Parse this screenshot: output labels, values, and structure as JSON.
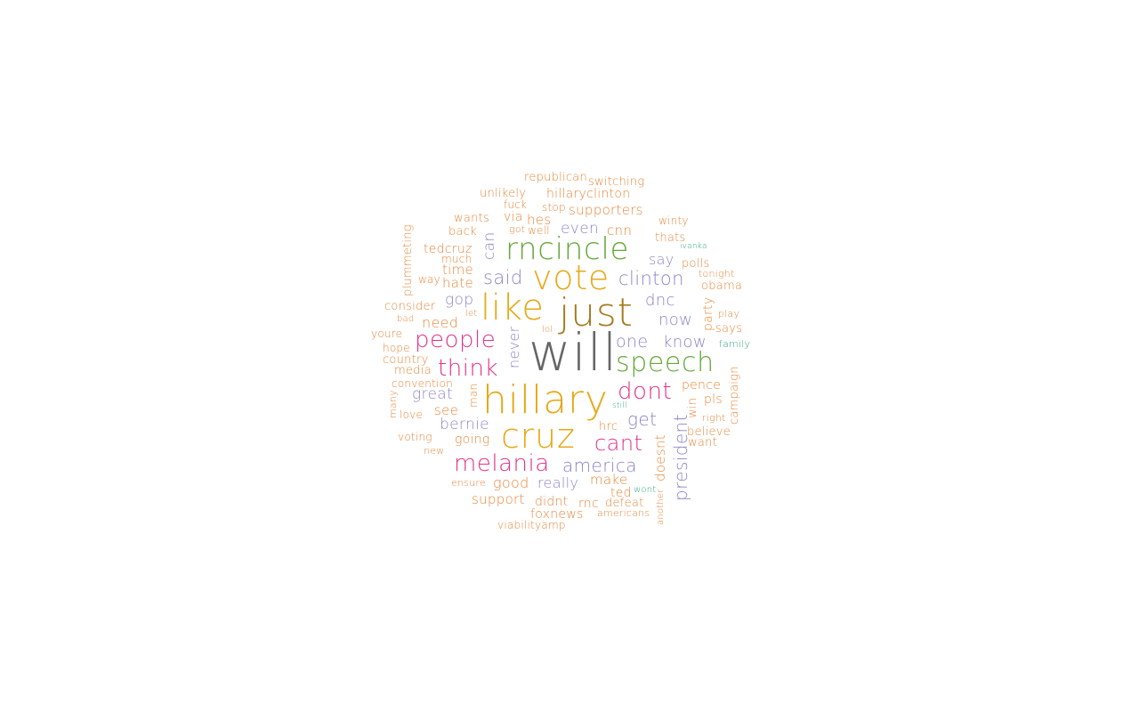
{
  "colors": {
    "background": "#ffffff",
    "orange": "#e8873a",
    "gold": "#e6a919",
    "brown": "#a47c23",
    "green": "#66a83a",
    "purple": "#8c86c8",
    "pink": "#e2338a",
    "gray": "#666666",
    "teal": "#2fa67f"
  },
  "words": [
    {
      "text": "will",
      "color": "gray"
    },
    {
      "text": "hillary",
      "color": "gold"
    },
    {
      "text": "just",
      "color": "brown"
    },
    {
      "text": "like",
      "color": "gold"
    },
    {
      "text": "vote",
      "color": "gold"
    },
    {
      "text": "cruz",
      "color": "gold"
    },
    {
      "text": "rncincle",
      "color": "green"
    },
    {
      "text": "speech",
      "color": "green"
    },
    {
      "text": "melania",
      "color": "pink"
    },
    {
      "text": "people",
      "color": "pink"
    },
    {
      "text": "dont",
      "color": "pink"
    },
    {
      "text": "think",
      "color": "pink"
    },
    {
      "text": "cant",
      "color": "pink"
    },
    {
      "text": "clinton",
      "color": "purple"
    },
    {
      "text": "america",
      "color": "purple"
    },
    {
      "text": "said",
      "color": "purple"
    },
    {
      "text": "get",
      "color": "purple"
    },
    {
      "text": "one",
      "color": "purple"
    },
    {
      "text": "know",
      "color": "purple"
    },
    {
      "text": "president",
      "color": "purple"
    },
    {
      "text": "bernie",
      "color": "purple"
    },
    {
      "text": "great",
      "color": "purple"
    },
    {
      "text": "now",
      "color": "purple"
    },
    {
      "text": "dnc",
      "color": "purple"
    },
    {
      "text": "gop",
      "color": "purple"
    },
    {
      "text": "even",
      "color": "purple"
    },
    {
      "text": "can",
      "color": "purple"
    },
    {
      "text": "never",
      "color": "purple"
    },
    {
      "text": "really",
      "color": "purple"
    },
    {
      "text": "say",
      "color": "purple"
    },
    {
      "text": "doesnt",
      "color": "orange"
    },
    {
      "text": "supporters",
      "color": "orange"
    },
    {
      "text": "hillaryclinton",
      "color": "orange"
    },
    {
      "text": "republican",
      "color": "orange"
    },
    {
      "text": "switching",
      "color": "orange"
    },
    {
      "text": "unlikely",
      "color": "orange"
    },
    {
      "text": "fuck",
      "color": "orange"
    },
    {
      "text": "stop",
      "color": "orange"
    },
    {
      "text": "wants",
      "color": "orange"
    },
    {
      "text": "via",
      "color": "orange"
    },
    {
      "text": "hes",
      "color": "orange"
    },
    {
      "text": "back",
      "color": "orange"
    },
    {
      "text": "got",
      "color": "orange"
    },
    {
      "text": "well",
      "color": "orange"
    },
    {
      "text": "cnn",
      "color": "orange"
    },
    {
      "text": "winty",
      "color": "orange"
    },
    {
      "text": "thats",
      "color": "orange"
    },
    {
      "text": "ivanka",
      "color": "teal"
    },
    {
      "text": "plummeting",
      "color": "orange"
    },
    {
      "text": "tedcruz",
      "color": "orange"
    },
    {
      "text": "much",
      "color": "orange"
    },
    {
      "text": "time",
      "color": "orange"
    },
    {
      "text": "way",
      "color": "orange"
    },
    {
      "text": "hate",
      "color": "orange"
    },
    {
      "text": "polls",
      "color": "orange"
    },
    {
      "text": "tonight",
      "color": "orange"
    },
    {
      "text": "obama",
      "color": "orange"
    },
    {
      "text": "consider",
      "color": "orange"
    },
    {
      "text": "let",
      "color": "orange"
    },
    {
      "text": "bad",
      "color": "orange"
    },
    {
      "text": "need",
      "color": "orange"
    },
    {
      "text": "party",
      "color": "orange"
    },
    {
      "text": "play",
      "color": "orange"
    },
    {
      "text": "says",
      "color": "orange"
    },
    {
      "text": "youre",
      "color": "orange"
    },
    {
      "text": "lol",
      "color": "orange"
    },
    {
      "text": "hope",
      "color": "orange"
    },
    {
      "text": "family",
      "color": "teal"
    },
    {
      "text": "country",
      "color": "orange"
    },
    {
      "text": "media",
      "color": "orange"
    },
    {
      "text": "campaign",
      "color": "orange"
    },
    {
      "text": "convention",
      "color": "orange"
    },
    {
      "text": "pence",
      "color": "orange"
    },
    {
      "text": "man",
      "color": "orange"
    },
    {
      "text": "many",
      "color": "orange"
    },
    {
      "text": "pls",
      "color": "orange"
    },
    {
      "text": "see",
      "color": "orange"
    },
    {
      "text": "still",
      "color": "teal"
    },
    {
      "text": "win",
      "color": "orange"
    },
    {
      "text": "love",
      "color": "orange"
    },
    {
      "text": "right",
      "color": "orange"
    },
    {
      "text": "hrc",
      "color": "orange"
    },
    {
      "text": "believe",
      "color": "orange"
    },
    {
      "text": "voting",
      "color": "orange"
    },
    {
      "text": "going",
      "color": "orange"
    },
    {
      "text": "want",
      "color": "orange"
    },
    {
      "text": "new",
      "color": "orange"
    },
    {
      "text": "make",
      "color": "orange"
    },
    {
      "text": "ensure",
      "color": "orange"
    },
    {
      "text": "good",
      "color": "orange"
    },
    {
      "text": "wont",
      "color": "teal"
    },
    {
      "text": "ted",
      "color": "orange"
    },
    {
      "text": "another",
      "color": "orange"
    },
    {
      "text": "support",
      "color": "orange"
    },
    {
      "text": "didnt",
      "color": "orange"
    },
    {
      "text": "rnc",
      "color": "orange"
    },
    {
      "text": "defeat",
      "color": "orange"
    },
    {
      "text": "foxnews",
      "color": "orange"
    },
    {
      "text": "americans",
      "color": "orange"
    },
    {
      "text": "viabilityamp",
      "color": "orange"
    }
  ]
}
